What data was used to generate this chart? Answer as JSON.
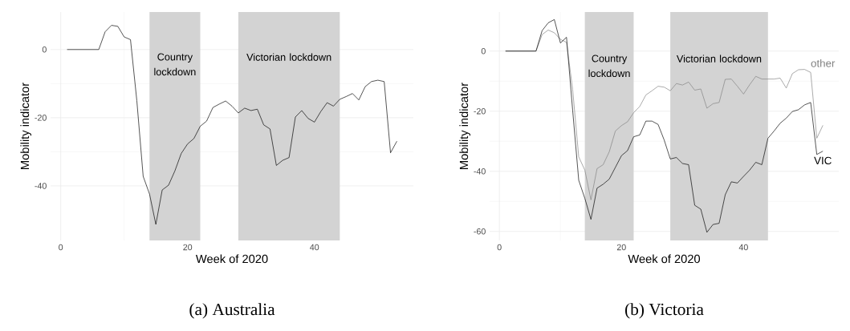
{
  "chart_data": [
    {
      "type": "line",
      "title": "(a) Australia",
      "xlabel": "Week of 2020",
      "ylabel": "Mobility indicator",
      "x": [
        1,
        2,
        3,
        4,
        5,
        6,
        7,
        8,
        9,
        10,
        11,
        12,
        13,
        14,
        15,
        16,
        17,
        18,
        19,
        20,
        21,
        22,
        23,
        24,
        25,
        26,
        27,
        28,
        29,
        30,
        31,
        32,
        33,
        34,
        35,
        36,
        37,
        38,
        39,
        40,
        41,
        42,
        43,
        44,
        45,
        46,
        47,
        48,
        49,
        50,
        51,
        52,
        53
      ],
      "series": [
        {
          "color": "#000000",
          "values": [
            0,
            0,
            0,
            0,
            0,
            0,
            5.2,
            7.1,
            6.8,
            3.7,
            2.9,
            -15,
            -37.2,
            -42.4,
            -51.3,
            -41.2,
            -39.8,
            -35.6,
            -30.5,
            -27.7,
            -26.1,
            -22.5,
            -21,
            -17,
            -16,
            -15.1,
            -16.6,
            -18.6,
            -17.2,
            -17.9,
            -17.5,
            -22.1,
            -23.3,
            -34,
            -32.5,
            -31.7,
            -19.8,
            -17.9,
            -20.2,
            -21.3,
            -18.2,
            -15.6,
            -16.6,
            -14.6,
            -13.8,
            -12.9,
            -14.8,
            -10.9,
            -9.4,
            -9,
            -9.4,
            -30.3,
            -26.9
          ]
        }
      ],
      "xlim": [
        -1.6,
        55.6
      ],
      "ylim": [
        -56,
        11
      ],
      "xticks": [
        0,
        20,
        40
      ],
      "yticks": [
        -40,
        -20,
        0
      ],
      "grid": true,
      "bands": [
        {
          "axis": "x",
          "from": 14,
          "to": 22,
          "label": "Country lockdown",
          "color": "#d3d3d3"
        },
        {
          "axis": "x",
          "from": 28,
          "to": 44,
          "label": "Victorian lockdown",
          "color": "#d3d3d3"
        }
      ]
    },
    {
      "type": "line",
      "title": "(b) Victoria",
      "xlabel": "Week of 2020",
      "ylabel": "Mobility indicator",
      "x": [
        1,
        2,
        3,
        4,
        5,
        6,
        7,
        8,
        9,
        10,
        11,
        12,
        13,
        14,
        15,
        16,
        17,
        18,
        19,
        20,
        21,
        22,
        23,
        24,
        25,
        26,
        27,
        28,
        29,
        30,
        31,
        32,
        33,
        34,
        35,
        36,
        37,
        38,
        39,
        40,
        41,
        42,
        43,
        44,
        45,
        46,
        47,
        48,
        49,
        50,
        51,
        52,
        53
      ],
      "series": [
        {
          "name": "other",
          "color": "#808080",
          "values": [
            0,
            0,
            0,
            0,
            0,
            0,
            5.5,
            7,
            6.1,
            3.9,
            2.9,
            -12.7,
            -35.2,
            -39.6,
            -49.5,
            -39.1,
            -37.8,
            -33.5,
            -26.6,
            -24.8,
            -23.5,
            -20.5,
            -18.4,
            -14.6,
            -13.2,
            -11.7,
            -12,
            -13.2,
            -10.8,
            -11.3,
            -10.3,
            -13,
            -12.6,
            -19,
            -17.5,
            -17.1,
            -9.4,
            -9.3,
            -11.7,
            -14.3,
            -11.2,
            -8.4,
            -9.3,
            -9.3,
            -9.3,
            -9,
            -12.3,
            -7.5,
            -6.2,
            -6.1,
            -7.1,
            -29,
            -24.7
          ]
        },
        {
          "name": "VIC",
          "color": "#000000",
          "values": [
            0,
            0,
            0,
            0,
            0,
            0,
            6.8,
            9.4,
            10.5,
            2.7,
            4.6,
            -19.6,
            -43,
            -49,
            -56,
            -45.6,
            -44.3,
            -42.6,
            -38.7,
            -34.8,
            -33.1,
            -28.5,
            -27.9,
            -23.3,
            -23.3,
            -24.4,
            -29.6,
            -35.9,
            -35.4,
            -37.4,
            -37.8,
            -51.3,
            -52.6,
            -60.3,
            -57.7,
            -57.3,
            -47.8,
            -43.5,
            -43.9,
            -41.7,
            -39.6,
            -37,
            -37.8,
            -29,
            -26.6,
            -24,
            -22.3,
            -20.1,
            -19.5,
            -17.9,
            -17.1,
            -34.4,
            -33.3
          ]
        }
      ],
      "xlim": [
        -1.6,
        55.6
      ],
      "ylim": [
        -63,
        13
      ],
      "xticks": [
        0,
        20,
        40
      ],
      "yticks": [
        -60,
        -40,
        -20,
        0
      ],
      "grid": true,
      "bands": [
        {
          "axis": "x",
          "from": 14,
          "to": 22,
          "label": "Country lockdown",
          "color": "#d3d3d3"
        },
        {
          "axis": "x",
          "from": 28,
          "to": 44,
          "label": "Victorian lockdown",
          "color": "#d3d3d3"
        }
      ]
    }
  ]
}
